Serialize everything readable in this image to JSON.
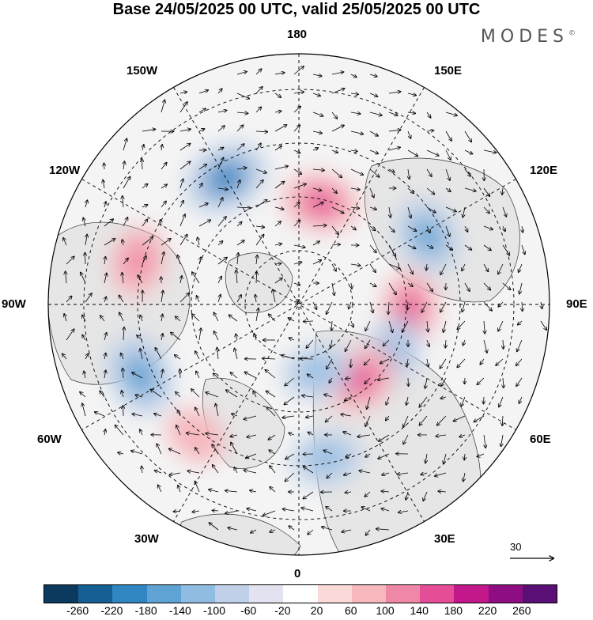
{
  "title": "Base 24/05/2025 00 UTC, valid 25/05/2025 00 UTC",
  "brand": "MODES",
  "brand_mark": "©",
  "longitude_labels": {
    "top": "180",
    "bottom": "0",
    "left": "90W",
    "right": "90E",
    "upper_left_1": "150W",
    "upper_left_2": "120W",
    "lower_left_1": "60W",
    "lower_left_2": "30W",
    "upper_right_1": "150E",
    "upper_right_2": "120E",
    "lower_right_1": "60E",
    "lower_right_2": "30E"
  },
  "vector_scale": "30",
  "colorbar": {
    "colors": [
      "#0b3a5e",
      "#155f93",
      "#2f86c1",
      "#5ea3d3",
      "#90bce1",
      "#bfd0e8",
      "#e3e2f0",
      "#ffffff",
      "#f9dad9",
      "#f6b7bd",
      "#ef88a6",
      "#e54d97",
      "#c2188a",
      "#8e0d82",
      "#5a0f74"
    ],
    "ticks": [
      "-260",
      "-220",
      "-180",
      "-140",
      "-100",
      "-60",
      "-20",
      "20",
      "60",
      "100",
      "140",
      "180",
      "220",
      "260"
    ]
  },
  "anomalies": [
    {
      "name": "neg-150w",
      "lon": -150,
      "colat": 42,
      "value": -200
    },
    {
      "name": "pos-165e",
      "lon": 168,
      "colat": 30,
      "value": 150
    },
    {
      "name": "neg-120e",
      "lon": 118,
      "colat": 42,
      "value": -150
    },
    {
      "name": "pos-90e",
      "lon": 88,
      "colat": 32,
      "value": 140
    },
    {
      "name": "pos-105w",
      "lon": -105,
      "colat": 48,
      "value": 120
    },
    {
      "name": "neg-60w",
      "lon": -66,
      "colat": 50,
      "value": -180
    },
    {
      "name": "neg-60e",
      "lon": 62,
      "colat": 30,
      "value": -140
    },
    {
      "name": "pos-40e",
      "lon": 40,
      "colat": 28,
      "value": 150
    },
    {
      "name": "neg-15e",
      "lon": 15,
      "colat": 20,
      "value": -110
    },
    {
      "name": "neg-20e",
      "lon": 10,
      "colat": 45,
      "value": -120
    },
    {
      "name": "pos-40w",
      "lon": -38,
      "colat": 48,
      "value": 80
    }
  ]
}
